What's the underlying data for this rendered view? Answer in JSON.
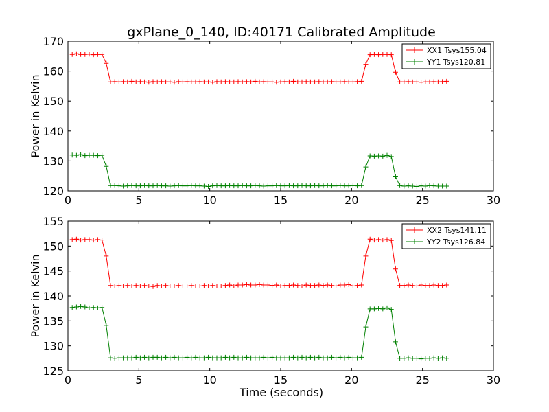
{
  "chart_data": [
    {
      "type": "line",
      "title": "gxPlane_0_140, ID:40171 Calibrated Amplitude",
      "xlabel": "",
      "ylabel": "Power in Kelvin",
      "xlim": [
        0,
        30
      ],
      "ylim": [
        120,
        170
      ],
      "xticks": [
        "0",
        "5",
        "10",
        "15",
        "20",
        "25",
        "30"
      ],
      "yticks": [
        "120",
        "130",
        "140",
        "150",
        "160",
        "170"
      ],
      "grid": false,
      "legend_position": "top-right",
      "marker": "plus",
      "series": [
        {
          "name": "XX1 Tsys155.04",
          "color": "#ff0000",
          "x": [
            0.3,
            0.6,
            0.9,
            1.2,
            1.5,
            1.8,
            2.1,
            2.4,
            2.7,
            3.0,
            3.3,
            3.6,
            3.9,
            4.2,
            4.5,
            4.8,
            5.1,
            5.4,
            5.7,
            6.0,
            6.3,
            6.6,
            6.9,
            7.2,
            7.5,
            7.8,
            8.1,
            8.4,
            8.7,
            9.0,
            9.3,
            9.6,
            9.9,
            10.2,
            10.5,
            10.8,
            11.1,
            11.4,
            11.7,
            12.0,
            12.3,
            12.6,
            12.9,
            13.2,
            13.5,
            13.8,
            14.1,
            14.4,
            14.7,
            15.0,
            15.3,
            15.6,
            15.9,
            16.2,
            16.5,
            16.8,
            17.1,
            17.4,
            17.7,
            18.0,
            18.3,
            18.6,
            18.9,
            19.2,
            19.5,
            19.8,
            20.1,
            20.4,
            20.7,
            21.0,
            21.3,
            21.6,
            21.9,
            22.2,
            22.5,
            22.8,
            23.1,
            23.4,
            23.7,
            24.0,
            24.3,
            24.6,
            24.9,
            25.2,
            25.5,
            25.8,
            26.1,
            26.4,
            26.7
          ],
          "values": [
            165.6,
            165.8,
            165.6,
            165.6,
            165.7,
            165.5,
            165.6,
            165.6,
            162.6,
            156.4,
            156.5,
            156.4,
            156.5,
            156.4,
            156.6,
            156.4,
            156.5,
            156.4,
            156.3,
            156.5,
            156.4,
            156.5,
            156.4,
            156.4,
            156.3,
            156.5,
            156.4,
            156.5,
            156.4,
            156.4,
            156.5,
            156.4,
            156.4,
            156.3,
            156.5,
            156.4,
            156.5,
            156.4,
            156.4,
            156.5,
            156.4,
            156.5,
            156.4,
            156.6,
            156.4,
            156.5,
            156.4,
            156.4,
            156.3,
            156.4,
            156.5,
            156.4,
            156.6,
            156.4,
            156.4,
            156.5,
            156.4,
            156.4,
            156.5,
            156.4,
            156.4,
            156.5,
            156.4,
            156.4,
            156.5,
            156.4,
            156.4,
            156.5,
            156.6,
            162.3,
            165.5,
            165.6,
            165.5,
            165.6,
            165.6,
            165.5,
            159.6,
            156.4,
            156.4,
            156.5,
            156.4,
            156.4,
            156.3,
            156.4,
            156.4,
            156.5,
            156.4,
            156.5,
            156.6
          ]
        },
        {
          "name": "YY1 Tsys120.81",
          "color": "#008000",
          "x": [
            0.3,
            0.6,
            0.9,
            1.2,
            1.5,
            1.8,
            2.1,
            2.4,
            2.7,
            3.0,
            3.3,
            3.6,
            3.9,
            4.2,
            4.5,
            4.8,
            5.1,
            5.4,
            5.7,
            6.0,
            6.3,
            6.6,
            6.9,
            7.2,
            7.5,
            7.8,
            8.1,
            8.4,
            8.7,
            9.0,
            9.3,
            9.6,
            9.9,
            10.2,
            10.5,
            10.8,
            11.1,
            11.4,
            11.7,
            12.0,
            12.3,
            12.6,
            12.9,
            13.2,
            13.5,
            13.8,
            14.1,
            14.4,
            14.7,
            15.0,
            15.3,
            15.6,
            15.9,
            16.2,
            16.5,
            16.8,
            17.1,
            17.4,
            17.7,
            18.0,
            18.3,
            18.6,
            18.9,
            19.2,
            19.5,
            19.8,
            20.1,
            20.4,
            20.7,
            21.0,
            21.3,
            21.6,
            21.9,
            22.2,
            22.5,
            22.8,
            23.1,
            23.4,
            23.7,
            24.0,
            24.3,
            24.6,
            24.9,
            25.2,
            25.5,
            25.8,
            26.1,
            26.4,
            26.7
          ],
          "values": [
            132.0,
            131.9,
            132.1,
            131.8,
            131.9,
            131.9,
            131.8,
            131.9,
            128.2,
            121.8,
            121.8,
            121.7,
            121.6,
            121.7,
            121.8,
            121.7,
            121.7,
            121.8,
            121.7,
            121.7,
            121.8,
            121.7,
            121.7,
            121.6,
            121.7,
            121.8,
            121.7,
            121.7,
            121.8,
            121.7,
            121.7,
            121.6,
            121.5,
            121.7,
            121.8,
            121.7,
            121.7,
            121.8,
            121.7,
            121.7,
            121.8,
            121.7,
            121.7,
            121.8,
            121.7,
            121.6,
            121.7,
            121.7,
            121.8,
            121.7,
            121.7,
            121.8,
            121.7,
            121.7,
            121.8,
            121.7,
            121.7,
            121.8,
            121.7,
            121.7,
            121.8,
            121.7,
            121.7,
            121.8,
            121.7,
            121.7,
            121.8,
            121.7,
            121.8,
            128.0,
            131.7,
            131.6,
            131.7,
            131.6,
            131.9,
            131.5,
            124.7,
            121.8,
            121.6,
            121.7,
            121.6,
            121.5,
            121.7,
            121.6,
            121.8,
            121.7,
            121.6,
            121.6,
            121.6
          ]
        }
      ]
    },
    {
      "type": "line",
      "title": "",
      "xlabel": "Time (seconds)",
      "ylabel": "Power in Kelvin",
      "xlim": [
        0,
        30
      ],
      "ylim": [
        125,
        155
      ],
      "xticks": [
        "0",
        "5",
        "10",
        "15",
        "20",
        "25",
        "30"
      ],
      "yticks": [
        "125",
        "130",
        "135",
        "140",
        "145",
        "150",
        "155"
      ],
      "grid": false,
      "legend_position": "top-right",
      "marker": "plus",
      "series": [
        {
          "name": "XX2 Tsys141.11",
          "color": "#ff0000",
          "x": [
            0.3,
            0.6,
            0.9,
            1.2,
            1.5,
            1.8,
            2.1,
            2.4,
            2.7,
            3.0,
            3.3,
            3.6,
            3.9,
            4.2,
            4.5,
            4.8,
            5.1,
            5.4,
            5.7,
            6.0,
            6.3,
            6.6,
            6.9,
            7.2,
            7.5,
            7.8,
            8.1,
            8.4,
            8.7,
            9.0,
            9.3,
            9.6,
            9.9,
            10.2,
            10.5,
            10.8,
            11.1,
            11.4,
            11.7,
            12.0,
            12.3,
            12.6,
            12.9,
            13.2,
            13.5,
            13.8,
            14.1,
            14.4,
            14.7,
            15.0,
            15.3,
            15.6,
            15.9,
            16.2,
            16.5,
            16.8,
            17.1,
            17.4,
            17.7,
            18.0,
            18.3,
            18.6,
            18.9,
            19.2,
            19.5,
            19.8,
            20.1,
            20.4,
            20.7,
            21.0,
            21.3,
            21.6,
            21.9,
            22.2,
            22.5,
            22.8,
            23.1,
            23.4,
            23.7,
            24.0,
            24.3,
            24.6,
            24.9,
            25.2,
            25.5,
            25.8,
            26.1,
            26.4,
            26.7
          ],
          "values": [
            151.3,
            151.4,
            151.2,
            151.3,
            151.3,
            151.2,
            151.3,
            151.2,
            148.0,
            142.1,
            142.0,
            142.1,
            142.0,
            142.1,
            142.0,
            142.1,
            142.0,
            142.1,
            142.0,
            141.9,
            142.1,
            142.0,
            142.1,
            142.0,
            142.0,
            142.1,
            142.0,
            142.0,
            142.1,
            142.0,
            142.0,
            142.1,
            142.0,
            142.1,
            142.0,
            142.0,
            142.1,
            142.2,
            142.0,
            142.2,
            142.2,
            142.3,
            142.2,
            142.2,
            142.3,
            142.2,
            142.2,
            142.1,
            142.2,
            142.0,
            142.1,
            142.1,
            142.2,
            142.1,
            142.0,
            142.2,
            142.1,
            142.1,
            142.2,
            142.1,
            142.2,
            142.1,
            142.0,
            142.2,
            142.2,
            142.3,
            142.0,
            142.1,
            142.2,
            148.0,
            151.4,
            151.2,
            151.3,
            151.2,
            151.3,
            151.1,
            145.4,
            142.1,
            142.1,
            142.2,
            142.1,
            142.0,
            142.2,
            142.1,
            142.1,
            142.2,
            142.1,
            142.1,
            142.2
          ]
        },
        {
          "name": "YY2 Tsys126.84",
          "color": "#008000",
          "x": [
            0.3,
            0.6,
            0.9,
            1.2,
            1.5,
            1.8,
            2.1,
            2.4,
            2.7,
            3.0,
            3.3,
            3.6,
            3.9,
            4.2,
            4.5,
            4.8,
            5.1,
            5.4,
            5.7,
            6.0,
            6.3,
            6.6,
            6.9,
            7.2,
            7.5,
            7.8,
            8.1,
            8.4,
            8.7,
            9.0,
            9.3,
            9.6,
            9.9,
            10.2,
            10.5,
            10.8,
            11.1,
            11.4,
            11.7,
            12.0,
            12.3,
            12.6,
            12.9,
            13.2,
            13.5,
            13.8,
            14.1,
            14.4,
            14.7,
            15.0,
            15.3,
            15.6,
            15.9,
            16.2,
            16.5,
            16.8,
            17.1,
            17.4,
            17.7,
            18.0,
            18.3,
            18.6,
            18.9,
            19.2,
            19.5,
            19.8,
            20.1,
            20.4,
            20.7,
            21.0,
            21.3,
            21.6,
            21.9,
            22.2,
            22.5,
            22.8,
            23.1,
            23.4,
            23.7,
            24.0,
            24.3,
            24.6,
            24.9,
            25.2,
            25.5,
            25.8,
            26.1,
            26.4,
            26.7
          ],
          "values": [
            137.7,
            137.8,
            137.9,
            137.8,
            137.6,
            137.7,
            137.6,
            137.7,
            134.1,
            127.6,
            127.5,
            127.6,
            127.6,
            127.6,
            127.6,
            127.7,
            127.6,
            127.7,
            127.6,
            127.7,
            127.7,
            127.6,
            127.7,
            127.6,
            127.7,
            127.6,
            127.6,
            127.7,
            127.6,
            127.7,
            127.6,
            127.6,
            127.7,
            127.6,
            127.6,
            127.6,
            127.7,
            127.6,
            127.7,
            127.6,
            127.6,
            127.7,
            127.6,
            127.6,
            127.6,
            127.7,
            127.6,
            127.7,
            127.6,
            127.6,
            127.6,
            127.6,
            127.7,
            127.6,
            127.7,
            127.6,
            127.7,
            127.6,
            127.7,
            127.6,
            127.6,
            127.7,
            127.6,
            127.7,
            127.6,
            127.7,
            127.6,
            127.6,
            127.7,
            133.8,
            137.4,
            137.4,
            137.5,
            137.4,
            137.6,
            137.3,
            130.8,
            127.5,
            127.5,
            127.6,
            127.5,
            127.5,
            127.4,
            127.5,
            127.5,
            127.6,
            127.5,
            127.6,
            127.5
          ]
        }
      ]
    }
  ]
}
